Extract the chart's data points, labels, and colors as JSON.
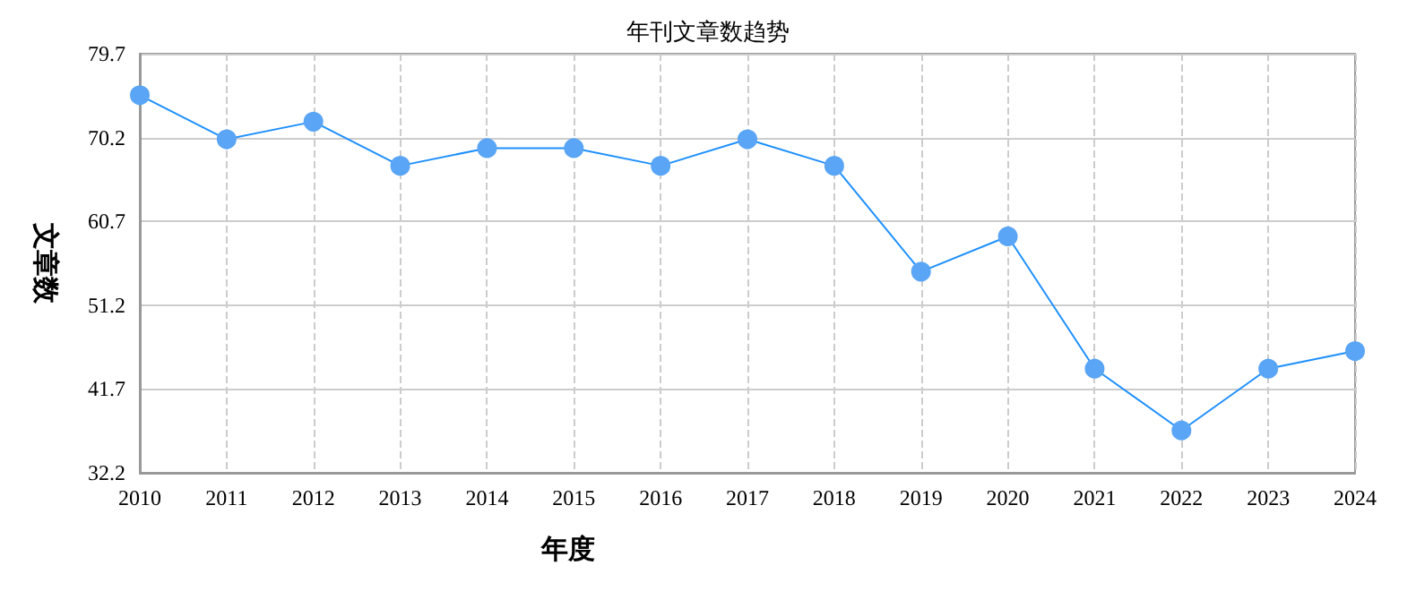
{
  "chart_data": {
    "type": "line",
    "title": "年刊文章数趋势",
    "xlabel": "年度",
    "ylabel": "文章数",
    "categories": [
      "2010",
      "2011",
      "2012",
      "2013",
      "2014",
      "2015",
      "2016",
      "2017",
      "2018",
      "2019",
      "2020",
      "2021",
      "2022",
      "2023",
      "2024"
    ],
    "series": [
      {
        "color": "#1e90ff",
        "values": [
          75,
          70,
          72,
          67,
          69,
          69,
          67,
          70,
          67,
          55,
          59,
          44,
          37,
          44,
          46
        ]
      }
    ],
    "ylim": [
      32.2,
      79.7
    ],
    "yticks": [
      32.2,
      41.7,
      51.2,
      60.7,
      70.2,
      79.7
    ],
    "grid": true,
    "marker": "circle",
    "line_style": "solid"
  }
}
